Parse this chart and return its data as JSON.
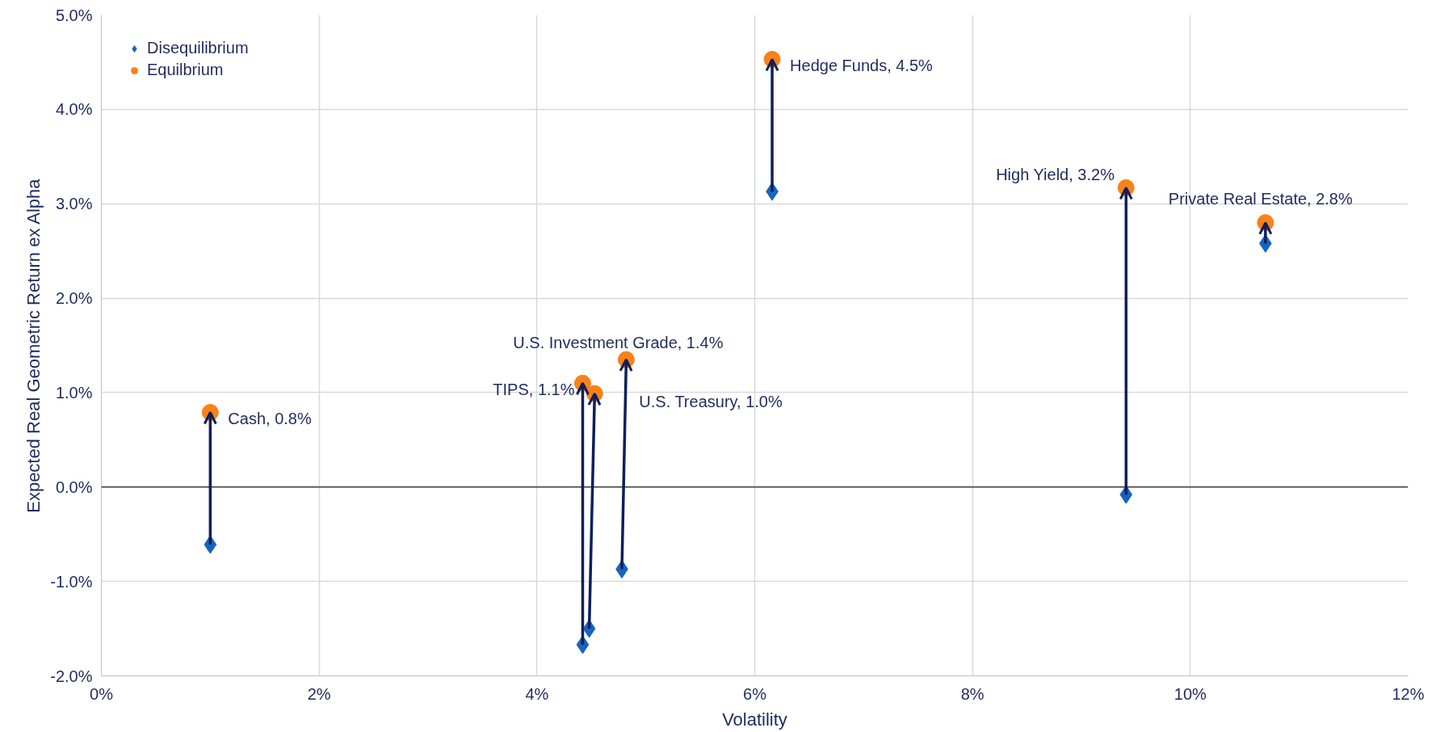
{
  "chart_data": {
    "type": "scatter",
    "xlabel": "Volatility",
    "ylabel": "Expected Real Geometric Return ex Alpha",
    "xlim": [
      0,
      12
    ],
    "xticks": [
      {
        "value": 0,
        "label": "0%"
      },
      {
        "value": 2,
        "label": "2%"
      },
      {
        "value": 4,
        "label": "4%"
      },
      {
        "value": 6,
        "label": "6%"
      },
      {
        "value": 8,
        "label": "8%"
      },
      {
        "value": 10,
        "label": "10%"
      },
      {
        "value": 12,
        "label": "12%"
      }
    ],
    "ylim": [
      -2,
      5
    ],
    "yticks": [
      {
        "value": -2,
        "label": "-2.0%"
      },
      {
        "value": -1,
        "label": "-1.0%"
      },
      {
        "value": 0,
        "label": "0.0%"
      },
      {
        "value": 1,
        "label": "1.0%"
      },
      {
        "value": 2,
        "label": "2.0%"
      },
      {
        "value": 3,
        "label": "3.0%"
      },
      {
        "value": 4,
        "label": "4.0%"
      },
      {
        "value": 5,
        "label": "5.0%"
      }
    ],
    "grid": true,
    "legend": "top left",
    "series": [
      {
        "name": "Disequilibrium",
        "color": "#1565c0",
        "marker": "diamond",
        "x": [
          1.0,
          4.42,
          4.48,
          4.78,
          6.16,
          9.41,
          10.69
        ],
        "values": [
          -0.61,
          -1.67,
          -1.5,
          -0.87,
          3.13,
          -0.08,
          2.58
        ]
      },
      {
        "name": "Equilbrium",
        "color": "#f7821b",
        "marker": "circle",
        "x": [
          1.0,
          4.42,
          4.53,
          4.82,
          6.16,
          9.41,
          10.69
        ],
        "values": [
          0.79,
          1.1,
          0.99,
          1.35,
          4.53,
          3.17,
          2.8
        ]
      }
    ],
    "ref_lines": [
      {
        "axis": "y",
        "value": 0,
        "label": null,
        "color": "#404040"
      }
    ],
    "annotations": [
      {
        "text": "Cash, 0.8%",
        "x": 1.0,
        "y": 0.79
      },
      {
        "text": "TIPS, 1.1%",
        "x": 4.42,
        "y": 1.1
      },
      {
        "text": "U.S. Treasury, 1.0%",
        "x": 4.53,
        "y": 0.99
      },
      {
        "text": "U.S. Investment Grade, 1.4%",
        "x": 4.82,
        "y": 1.35
      },
      {
        "text": "Hedge Funds, 4.5%",
        "x": 6.16,
        "y": 4.53
      },
      {
        "text": "High Yield, 3.2%",
        "x": 9.41,
        "y": 3.17
      },
      {
        "text": "Private Real Estate, 2.8%",
        "x": 10.69,
        "y": 2.8
      }
    ]
  }
}
